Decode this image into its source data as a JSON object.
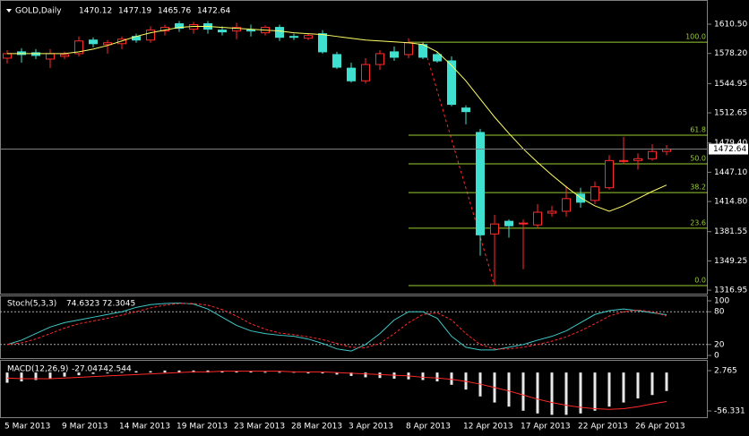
{
  "chart_data": [
    {
      "type": "candlestick",
      "symbol": "GOLD,Daily",
      "categories": [
        "5 Mar 2013",
        null,
        null,
        null,
        "9 Mar 2013",
        null,
        null,
        null,
        "14 Mar 2013",
        null,
        null,
        null,
        "19 Mar 2013",
        null,
        null,
        null,
        "23 Mar 2013",
        null,
        null,
        null,
        "28 Mar 2013",
        null,
        null,
        null,
        "3 Apr 2013",
        null,
        null,
        null,
        "8 Apr 2013",
        null,
        null,
        null,
        "12 Apr 2013",
        null,
        null,
        null,
        "17 Apr 2013",
        null,
        null,
        null,
        "22 Apr 2013",
        null,
        null,
        null,
        "26 Apr 2013",
        null,
        null
      ],
      "open": [
        1573,
        1580,
        1579,
        1572,
        1575,
        1578,
        1593,
        1588,
        1589,
        1597,
        1593,
        1603,
        1611,
        1605,
        1611,
        1604,
        1603,
        1604,
        1601,
        1607,
        1597,
        1595,
        1600,
        1577,
        1562,
        1548,
        1566,
        1580,
        1577,
        1588,
        1577,
        1570,
        1518,
        1491,
        1379,
        1393,
        1390,
        1389,
        1402,
        1404,
        1423,
        1416,
        1430,
        1460,
        1460,
        1462,
        1470.12
      ],
      "high": [
        1582,
        1584,
        1583,
        1583,
        1580,
        1597,
        1596,
        1593,
        1597,
        1600,
        1608,
        1610,
        1614,
        1613,
        1614,
        1608,
        1612,
        1610,
        1609,
        1610,
        1600,
        1600,
        1604,
        1580,
        1568,
        1573,
        1582,
        1586,
        1595,
        1590.7,
        1580,
        1575,
        1521,
        1495,
        1400,
        1395,
        1395,
        1412,
        1410,
        1432,
        1430,
        1437,
        1466,
        1486,
        1468,
        1478,
        1477.19
      ],
      "low": [
        1567,
        1568,
        1572,
        1562,
        1572,
        1575,
        1585,
        1578,
        1583,
        1590,
        1590,
        1598,
        1602,
        1600,
        1600,
        1598,
        1594,
        1597,
        1598,
        1592,
        1593,
        1593,
        1578,
        1561,
        1546,
        1545,
        1560,
        1570,
        1573,
        1572,
        1568,
        1520,
        1500,
        1355,
        1322,
        1375,
        1340,
        1385,
        1398,
        1398,
        1408,
        1412,
        1428,
        1456,
        1450,
        1460,
        1465.76
      ],
      "close": [
        1578,
        1577,
        1576,
        1578,
        1577,
        1592,
        1589,
        1590,
        1594,
        1593,
        1604,
        1607,
        1606,
        1610,
        1605,
        1602,
        1607,
        1603,
        1607,
        1596,
        1596,
        1598,
        1580,
        1563,
        1548,
        1566,
        1578,
        1574,
        1590,
        1574,
        1570,
        1522,
        1514,
        1378,
        1390,
        1388,
        1391,
        1403,
        1404,
        1418,
        1414,
        1431,
        1460,
        1460,
        1462,
        1470,
        1472.64
      ],
      "up_color": "#ff2a2a",
      "down_color": "#40e0d0",
      "ma": {
        "color": "#ffff66",
        "values": [
          1578,
          1578,
          1578,
          1578,
          1578,
          1580,
          1583,
          1587,
          1592,
          1597,
          1601,
          1604,
          1607,
          1608,
          1608,
          1607,
          1606,
          1605,
          1604,
          1603,
          1601,
          1600,
          1599,
          1597,
          1595,
          1593,
          1592,
          1591,
          1590,
          1588,
          1580,
          1565,
          1548,
          1528,
          1508,
          1490,
          1473,
          1458,
          1444,
          1431,
          1419,
          1410,
          1404,
          1410,
          1418,
          1426,
          1433
        ]
      },
      "fib": {
        "high_index": 29,
        "low_index": 34,
        "color": "#9acd32",
        "trend_color": "#ff2a2a",
        "levels": [
          {
            "value": 100,
            "label": "100.0"
          },
          {
            "value": 61.8,
            "label": "61.8"
          },
          {
            "value": 50,
            "label": "50.0"
          },
          {
            "value": 38.2,
            "label": "38.2"
          },
          {
            "value": 23.6,
            "label": "23.6"
          },
          {
            "value": 0,
            "label": "0.0"
          }
        ]
      },
      "ylim": [
        1313.1,
        1629.3
      ],
      "yticks": [
        {
          "value": 1610.5,
          "label": "1610.50"
        },
        {
          "value": 1578.2,
          "label": "1578.20"
        },
        1544.95,
        1512.65,
        {
          "value": 1479.4,
          "label": "1479.40"
        },
        {
          "value": 1447.1,
          "label": "1447.10"
        },
        {
          "value": 1414.8,
          "label": "1414.80"
        },
        1381.55,
        1349.25,
        1316.95
      ]
    },
    {
      "type": "line",
      "title": "Stoch(5,3,3)",
      "series": [
        {
          "color": "#40c8c8",
          "dash": false,
          "values": [
            20,
            28,
            40,
            52,
            60,
            65,
            70,
            75,
            80,
            88,
            93,
            95,
            96,
            94,
            85,
            70,
            55,
            45,
            40,
            37,
            35,
            30,
            22,
            12,
            8,
            20,
            40,
            65,
            80,
            80,
            68,
            35,
            15,
            10,
            10,
            15,
            20,
            28,
            35,
            45,
            60,
            75,
            82,
            85,
            82,
            78,
            74.6323
          ]
        },
        {
          "color": "#ff2a2a",
          "dash": true,
          "values": [
            20,
            23,
            30,
            40,
            50,
            58,
            63,
            68,
            74,
            80,
            87,
            92,
            95,
            95,
            92,
            84,
            72,
            58,
            48,
            41,
            38,
            34,
            29,
            22,
            15,
            14,
            22,
            40,
            60,
            75,
            78,
            65,
            40,
            20,
            12,
            12,
            15,
            20,
            26,
            34,
            45,
            58,
            72,
            80,
            83,
            80,
            72.3045
          ]
        }
      ],
      "levels": [
        80,
        20
      ],
      "ylim": [
        -4.9,
        108.2
      ],
      "yticks": [
        100,
        80,
        20,
        0
      ]
    },
    {
      "type": "macd",
      "title": "MACD(12,26,9)",
      "histogram": {
        "color": "#e8e8e8",
        "values": [
          -15,
          -13,
          -11,
          -9,
          -6,
          -4,
          -2,
          -1,
          1,
          2,
          2,
          3,
          3,
          3,
          3,
          2,
          2,
          2,
          1,
          1,
          1,
          0,
          -1,
          -3,
          -5,
          -7,
          -8,
          -9,
          -10,
          -11,
          -13,
          -18,
          -25,
          -35,
          -44,
          -50,
          -56,
          -60,
          -62,
          -62,
          -60,
          -56,
          -50,
          -44,
          -38,
          -33,
          -27.047
        ]
      },
      "signal": {
        "color": "#ff2a2a",
        "values": [
          -8,
          -9,
          -9,
          -9,
          -8,
          -7,
          -6,
          -5,
          -4,
          -3,
          -2,
          -1,
          0,
          1,
          1,
          2,
          2,
          2,
          2,
          2,
          1,
          1,
          1,
          0,
          -1,
          -2,
          -3,
          -4,
          -5,
          -7,
          -8,
          -10,
          -13,
          -17,
          -22,
          -27,
          -33,
          -39,
          -44,
          -48,
          -51,
          -53,
          -54,
          -53,
          -50,
          -46,
          -42.544
        ]
      },
      "ylim": [
        -66.8,
        17.2
      ],
      "yticks": [
        2.765,
        -56.331
      ]
    }
  ]
}
